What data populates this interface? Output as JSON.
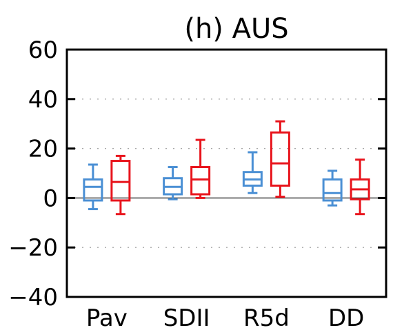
{
  "chart_data": {
    "type": "box",
    "title": "(h) AUS",
    "categories": [
      "Pav",
      "SDII",
      "R5d",
      "DD"
    ],
    "ylim": [
      -40,
      60
    ],
    "yticks": [
      60,
      40,
      20,
      0,
      -20,
      -40
    ],
    "ytick_labels": [
      "60",
      "40",
      "20",
      "0",
      "−20",
      "−40"
    ],
    "grid": "dotted horizontal",
    "zero_line": true,
    "series": [
      {
        "color": "#4a8fd4",
        "boxes": [
          {
            "min": -4.5,
            "q1": -1,
            "median": 4.5,
            "q3": 7.5,
            "max": 13.5
          },
          {
            "min": -0.5,
            "q1": 1.5,
            "median": 4.5,
            "q3": 8,
            "max": 12.5
          },
          {
            "min": 2,
            "q1": 5,
            "median": 7.5,
            "q3": 10.5,
            "max": 18.5
          },
          {
            "min": -3,
            "q1": -1,
            "median": 2,
            "q3": 7.5,
            "max": 11
          }
        ]
      },
      {
        "color": "#e8141c",
        "boxes": [
          {
            "min": -6.5,
            "q1": -1,
            "median": 6.5,
            "q3": 15,
            "max": 17
          },
          {
            "min": 0,
            "q1": 1.5,
            "median": 7.5,
            "q3": 12.5,
            "max": 23.5
          },
          {
            "min": 0.5,
            "q1": 5,
            "median": 14,
            "q3": 26.5,
            "max": 31
          },
          {
            "min": -6.5,
            "q1": -0.5,
            "median": 3.5,
            "q3": 7.5,
            "max": 15.5
          }
        ]
      }
    ]
  }
}
